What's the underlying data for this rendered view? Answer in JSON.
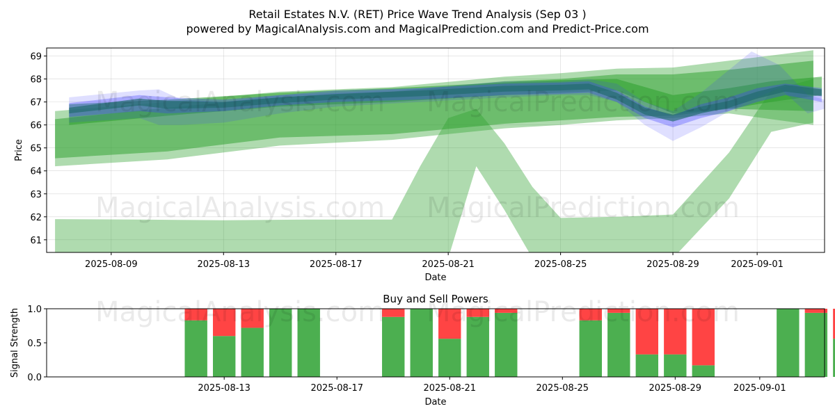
{
  "header": {
    "title": "Retail Estates N.V. (RET) Price Wave Trend Analysis (Sep 03 )",
    "subtitle": "powered by MagicalAnalysis.com and MagicalPrediction.com and Predict-Price.com"
  },
  "watermarks": [
    "MagicalAnalysis.com",
    "MagicalPrediction.com"
  ],
  "colors": {
    "green": "#2ca02c",
    "blue": "#3b3bff",
    "buy": "#4caf50",
    "sell": "#ff4444",
    "grid": "#b0b0b0"
  },
  "chart_data": [
    {
      "type": "line",
      "title": "",
      "xlabel": "Date",
      "ylabel": "Price",
      "ylim": [
        60.45,
        69.35
      ],
      "xlim_days_from_aug7": [
        -0.3,
        27.4
      ],
      "grid": true,
      "x_ticks": [
        {
          "day": 2,
          "label": "2025-08-09"
        },
        {
          "day": 6,
          "label": "2025-08-13"
        },
        {
          "day": 10,
          "label": "2025-08-17"
        },
        {
          "day": 14,
          "label": "2025-08-21"
        },
        {
          "day": 18,
          "label": "2025-08-25"
        },
        {
          "day": 22,
          "label": "2025-08-29"
        },
        {
          "day": 25,
          "label": "2025-09-01"
        }
      ],
      "y_ticks": [
        61,
        62,
        63,
        64,
        65,
        66,
        67,
        68,
        69
      ],
      "bands": [
        {
          "name": "lower-wave-band",
          "color": "green",
          "opacity": 0.38,
          "x": [
            0,
            3,
            6,
            9,
            12,
            13,
            14,
            15,
            16,
            17,
            18,
            20,
            22,
            24,
            25.5,
            27
          ],
          "upper": [
            61.9,
            61.88,
            61.85,
            61.88,
            61.88,
            64.2,
            66.3,
            66.7,
            65.2,
            63.3,
            61.95,
            62.0,
            62.1,
            64.8,
            67.5,
            68.0
          ],
          "lower": [
            60.2,
            60.2,
            60.2,
            60.2,
            60.2,
            60.2,
            60.2,
            64.2,
            62.3,
            60.2,
            60.2,
            60.2,
            60.2,
            62.8,
            65.7,
            66.1
          ]
        },
        {
          "name": "wide-channel-band",
          "color": "green",
          "opacity": 0.38,
          "x": [
            0,
            4,
            8,
            12,
            16,
            18,
            20,
            22,
            24,
            27
          ],
          "upper": [
            66.6,
            67.0,
            67.45,
            67.65,
            68.1,
            68.25,
            68.45,
            68.5,
            68.8,
            69.25
          ],
          "lower": [
            64.2,
            64.5,
            65.1,
            65.35,
            65.85,
            66.0,
            66.2,
            66.3,
            66.5,
            66.0
          ]
        },
        {
          "name": "mid-channel-band",
          "color": "green",
          "opacity": 0.5,
          "x": [
            0,
            4,
            8,
            12,
            16,
            18,
            20,
            22,
            24,
            27
          ],
          "upper": [
            66.25,
            66.75,
            67.2,
            67.45,
            67.9,
            68.0,
            68.2,
            68.2,
            68.4,
            68.8
          ],
          "lower": [
            64.55,
            64.85,
            65.45,
            65.6,
            66.05,
            66.2,
            66.35,
            66.4,
            66.7,
            66.6
          ]
        },
        {
          "name": "inner-trend-band",
          "color": "green",
          "opacity": 0.55,
          "x": [
            0.5,
            4,
            8,
            12,
            16,
            18,
            20,
            22,
            24,
            25.5,
            27.3
          ],
          "upper": [
            66.9,
            67.1,
            67.4,
            67.6,
            67.85,
            67.95,
            68.0,
            67.3,
            67.6,
            67.9,
            68.1
          ],
          "lower": [
            66.0,
            66.4,
            66.8,
            67.0,
            67.3,
            67.4,
            67.5,
            66.5,
            66.7,
            67.0,
            67.3
          ]
        },
        {
          "name": "price-wave-outer",
          "color": "blue",
          "opacity": 0.16,
          "x": [
            0.5,
            3,
            3.7,
            4.5,
            6,
            8,
            10,
            13,
            16,
            18,
            19,
            20,
            21,
            22,
            23,
            24,
            24.8,
            25.8,
            26.8,
            27.4
          ],
          "upper": [
            67.2,
            67.5,
            67.55,
            67.1,
            67.0,
            67.3,
            67.4,
            67.6,
            67.9,
            67.9,
            68.0,
            67.8,
            67.0,
            66.6,
            67.4,
            68.4,
            69.2,
            68.6,
            67.3,
            67.1
          ],
          "lower": [
            66.1,
            66.3,
            66.0,
            66.0,
            66.1,
            66.5,
            66.8,
            67.0,
            67.2,
            67.3,
            67.3,
            67.0,
            66.0,
            65.3,
            65.9,
            66.6,
            67.1,
            67.6,
            66.5,
            66.7
          ]
        },
        {
          "name": "price-wave-inner",
          "color": "blue",
          "opacity": 0.32,
          "x": [
            0.5,
            3,
            4,
            6,
            8,
            10,
            13,
            16,
            18,
            19,
            20,
            21,
            22,
            23,
            24,
            25,
            26,
            27.3
          ],
          "upper": [
            66.95,
            67.3,
            67.2,
            67.1,
            67.3,
            67.5,
            67.6,
            67.8,
            67.85,
            67.9,
            67.5,
            66.8,
            66.4,
            66.9,
            67.2,
            67.6,
            67.8,
            67.6
          ],
          "lower": [
            66.35,
            66.6,
            66.5,
            66.6,
            66.85,
            67.0,
            67.1,
            67.3,
            67.35,
            67.4,
            67.0,
            66.3,
            65.9,
            66.3,
            66.6,
            67.0,
            67.3,
            67.0
          ]
        },
        {
          "name": "price-wave-core",
          "color": "#1f6a6a",
          "opacity": 0.65,
          "x": [
            0.5,
            3,
            4,
            6,
            8,
            10,
            13,
            16,
            18,
            19,
            20,
            21,
            22,
            23,
            24,
            25,
            26,
            27.3
          ],
          "upper": [
            66.75,
            67.15,
            67.05,
            67.0,
            67.2,
            67.35,
            67.5,
            67.7,
            67.75,
            67.8,
            67.4,
            66.75,
            66.45,
            66.8,
            67.05,
            67.45,
            67.75,
            67.55
          ],
          "lower": [
            66.5,
            66.85,
            66.7,
            66.75,
            66.95,
            67.1,
            67.25,
            67.45,
            67.5,
            67.55,
            67.1,
            66.45,
            66.15,
            66.5,
            66.75,
            67.15,
            67.45,
            67.25
          ]
        }
      ]
    },
    {
      "type": "bar",
      "stacked": true,
      "title": "Buy and Sell Powers",
      "xlabel": "Date",
      "ylabel": "Signal Strength",
      "ylim": [
        0,
        1
      ],
      "xlim_days_from_aug7": [
        -0.3,
        27.3
      ],
      "x_ticks": [
        {
          "day": 6,
          "label": "2025-08-13"
        },
        {
          "day": 10,
          "label": "2025-08-17"
        },
        {
          "day": 14,
          "label": "2025-08-21"
        },
        {
          "day": 18,
          "label": "2025-08-25"
        },
        {
          "day": 22,
          "label": "2025-08-29"
        },
        {
          "day": 25,
          "label": "2025-09-01"
        }
      ],
      "y_ticks": [
        0.0,
        0.5,
        1.0
      ],
      "days": [
        5,
        6,
        7,
        8,
        9,
        12,
        13,
        14,
        15,
        16,
        19,
        20,
        21,
        22,
        23,
        26,
        27,
        28
      ],
      "series": [
        {
          "name": "Buy",
          "values": [
            0.83,
            0.6,
            0.72,
            1.0,
            1.0,
            0.88,
            1.0,
            0.56,
            0.88,
            0.94,
            0.83,
            0.94,
            0.33,
            0.33,
            0.17,
            1.0,
            0.94,
            0.56
          ]
        },
        {
          "name": "Sell",
          "values": [
            0.17,
            0.4,
            0.28,
            0.0,
            0.0,
            0.12,
            0.0,
            0.44,
            0.12,
            0.06,
            0.17,
            0.06,
            0.67,
            0.67,
            0.83,
            0.0,
            0.06,
            0.44
          ]
        }
      ]
    }
  ]
}
